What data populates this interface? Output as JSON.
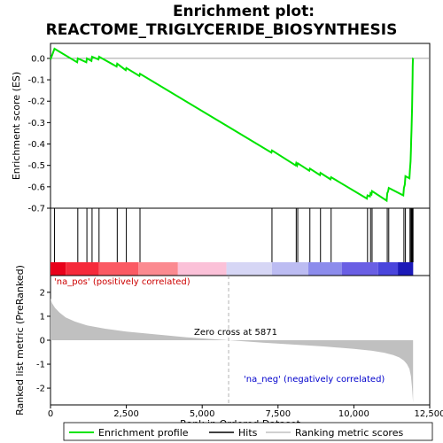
{
  "chart_data": {
    "type": "line",
    "title_line1": "Enrichment plot:",
    "title_line2": "REACTOME_TRIGLYCERIDE_BIOSYNTHESIS",
    "xlabel": "Rank in Ordered Dataset",
    "ylabel_top": "Enrichment score (ES)",
    "ylabel_bottom": "Ranked list metric (PreRanked)",
    "xlim": [
      0,
      12500
    ],
    "x_ticks": [
      0,
      2500,
      5000,
      7500,
      10000,
      12500
    ],
    "x_tick_labels": [
      "0",
      "2,500",
      "5,000",
      "7,500",
      "10,000",
      "12,500"
    ],
    "es_ylim": [
      -0.7,
      0.07
    ],
    "es_ticks": [
      0.0,
      -0.1,
      -0.2,
      -0.3,
      -0.4,
      -0.5,
      -0.6,
      -0.7
    ],
    "es_tick_labels": [
      "0.0",
      "-0.1",
      "-0.2",
      "-0.3",
      "-0.4",
      "-0.5",
      "-0.6",
      "-0.7"
    ],
    "metric_ylim": [
      -2.7,
      2.7
    ],
    "metric_ticks": [
      2,
      1,
      0,
      -1,
      -2
    ],
    "metric_tick_labels": [
      "2",
      "1",
      "0",
      "-1",
      "-2"
    ],
    "hits": [
      130,
      900,
      1200,
      1370,
      1600,
      2200,
      2500,
      2950,
      7300,
      8100,
      8150,
      8550,
      8900,
      9250,
      10450,
      10550,
      10600,
      11100,
      11150,
      11650,
      11700,
      11850,
      11880,
      11900,
      11920,
      11930,
      11940,
      11950
    ],
    "es_profile": {
      "x": [
        0,
        130,
        880,
        900,
        1180,
        1200,
        1350,
        1370,
        1580,
        1600,
        2180,
        2200,
        2480,
        2500,
        2930,
        2950,
        7280,
        7300,
        8080,
        8100,
        8130,
        8150,
        8530,
        8550,
        8880,
        8900,
        9230,
        9250,
        10430,
        10450,
        10530,
        10550,
        10580,
        10600,
        11080,
        11100,
        11130,
        11150,
        11630,
        11650,
        11680,
        11700,
        11830,
        11850,
        11870,
        11880,
        11890,
        11900,
        11910,
        11920,
        11925,
        11930,
        11935,
        11940,
        11945,
        11950,
        11955
      ],
      "y": [
        -0.005,
        0.045,
        -0.018,
        0.0,
        -0.018,
        0.0,
        -0.012,
        0.008,
        -0.005,
        0.008,
        -0.038,
        -0.025,
        -0.055,
        -0.045,
        -0.082,
        -0.072,
        -0.44,
        -0.43,
        -0.5,
        -0.49,
        -0.5,
        -0.49,
        -0.525,
        -0.515,
        -0.545,
        -0.535,
        -0.565,
        -0.555,
        -0.655,
        -0.64,
        -0.645,
        -0.63,
        -0.635,
        -0.62,
        -0.665,
        -0.63,
        -0.62,
        -0.605,
        -0.64,
        -0.605,
        -0.59,
        -0.55,
        -0.56,
        -0.52,
        -0.48,
        -0.43,
        -0.38,
        -0.33,
        -0.28,
        -0.23,
        -0.18,
        -0.13,
        -0.08,
        -0.04,
        -0.01,
        0.0,
        0.0
      ]
    },
    "zero_cross": 5871,
    "zero_cross_label": "Zero cross at 5871",
    "pos_label": "'na_pos' (positively correlated)",
    "neg_label": "'na_neg' (negatively correlated)",
    "metric_profile": {
      "x": [
        0,
        50,
        150,
        300,
        500,
        800,
        1200,
        1800,
        2500,
        3500,
        4500,
        5871,
        7000,
        8000,
        9000,
        10000,
        10600,
        11000,
        11300,
        11500,
        11650,
        11750,
        11830,
        11880,
        11920,
        11950
      ],
      "y": [
        1.75,
        1.55,
        1.35,
        1.15,
        0.95,
        0.78,
        0.62,
        0.48,
        0.36,
        0.24,
        0.12,
        0.0,
        -0.1,
        -0.18,
        -0.26,
        -0.36,
        -0.44,
        -0.52,
        -0.62,
        -0.72,
        -0.85,
        -1.0,
        -1.2,
        -1.5,
        -2.0,
        -2.6
      ]
    },
    "heat_bands": [
      {
        "from": 0,
        "to": 500,
        "color": "#e8001a"
      },
      {
        "from": 500,
        "to": 1600,
        "color": "#f52a3b"
      },
      {
        "from": 1600,
        "to": 2900,
        "color": "#fb5a64"
      },
      {
        "from": 2900,
        "to": 4200,
        "color": "#fb8a90"
      },
      {
        "from": 4200,
        "to": 5800,
        "color": "#fbc1d8"
      },
      {
        "from": 5800,
        "to": 7300,
        "color": "#d6d6f5"
      },
      {
        "from": 7300,
        "to": 8500,
        "color": "#bcbcf2"
      },
      {
        "from": 8500,
        "to": 9600,
        "color": "#8c8cec"
      },
      {
        "from": 9600,
        "to": 10800,
        "color": "#6a5fe4"
      },
      {
        "from": 10800,
        "to": 11450,
        "color": "#4a45dc"
      },
      {
        "from": 11450,
        "to": 11955,
        "color": "#1c1ab8"
      }
    ],
    "colors": {
      "es_line": "#00e400",
      "hits": "#000000",
      "metric_fill": "#c0c0c0",
      "pos_text": "#cc0000",
      "neg_text": "#0000cc"
    }
  },
  "legend": {
    "items": [
      {
        "label": "Enrichment profile",
        "kind": "green-line"
      },
      {
        "label": "Hits",
        "kind": "black-line"
      },
      {
        "label": "Ranking metric scores",
        "kind": "gray-line"
      }
    ]
  }
}
